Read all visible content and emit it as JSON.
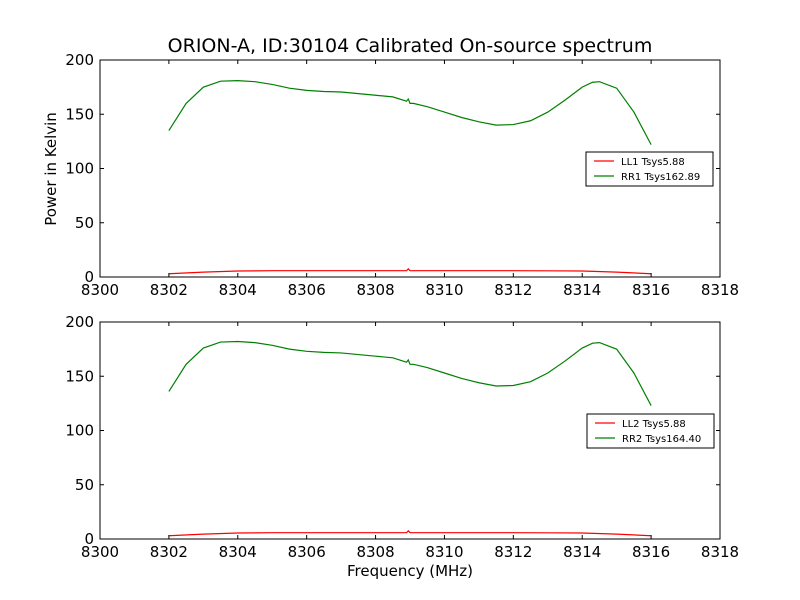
{
  "chart_data": {
    "type": "line",
    "title": "ORION-A, ID:30104 Calibrated On-source spectrum",
    "ylabel": "Power in Kelvin",
    "xlabel": "Frequency (MHz)",
    "grid": false,
    "legend_position": "right",
    "panels": [
      {
        "xlim": [
          8300,
          8318
        ],
        "ylim": [
          0,
          200
        ],
        "xticks": [
          8300,
          8302,
          8304,
          8306,
          8308,
          8310,
          8312,
          8314,
          8316,
          8318
        ],
        "yticks": [
          0,
          50,
          100,
          150,
          200
        ],
        "series": [
          {
            "name": "LL1 Tsys5.88",
            "color": "#ff0000",
            "x": [
              8302,
              8303,
              8304,
              8305,
              8306,
              8307,
              8308,
              8308.9,
              8308.95,
              8309.0,
              8309.1,
              8310,
              8311,
              8312,
              8313,
              8314,
              8315,
              8316
            ],
            "y": [
              3,
              4.5,
              5.5,
              5.8,
              5.8,
              5.8,
              5.8,
              5.8,
              7.5,
              5.8,
              5.8,
              5.8,
              5.8,
              5.8,
              5.7,
              5.5,
              4.5,
              3
            ]
          },
          {
            "name": "RR1 Tsys162.89",
            "color": "#008000",
            "x": [
              8302,
              8302.5,
              8303,
              8303.5,
              8304,
              8304.5,
              8305,
              8305.5,
              8306,
              8306.5,
              8307,
              8307.5,
              8308,
              8308.5,
              8308.9,
              8308.95,
              8309.0,
              8309.1,
              8309.5,
              8310,
              8310.5,
              8311,
              8311.5,
              8312,
              8312.5,
              8313,
              8313.5,
              8314,
              8314.3,
              8314.5,
              8315,
              8315.5,
              8316
            ],
            "y": [
              135,
              160,
              175,
              180.5,
              181,
              180,
              177.5,
              174,
              172,
              171,
              170.5,
              169,
              167.5,
              166,
              162,
              164,
              160,
              160,
              157,
              152,
              147,
              143,
              140,
              140.5,
              144,
              152,
              163,
              175,
              179.5,
              180,
              174,
              152,
              122
            ]
          }
        ]
      },
      {
        "xlim": [
          8300,
          8318
        ],
        "ylim": [
          0,
          200
        ],
        "xticks": [
          8300,
          8302,
          8304,
          8306,
          8308,
          8310,
          8312,
          8314,
          8316,
          8318
        ],
        "yticks": [
          0,
          50,
          100,
          150,
          200
        ],
        "series": [
          {
            "name": "LL2 Tsys5.88",
            "color": "#ff0000",
            "x": [
              8302,
              8303,
              8304,
              8305,
              8306,
              8307,
              8308,
              8308.9,
              8308.95,
              8309.0,
              8309.1,
              8310,
              8311,
              8312,
              8313,
              8314,
              8315,
              8316
            ],
            "y": [
              3,
              4.5,
              5.5,
              5.8,
              5.8,
              5.8,
              5.8,
              5.8,
              7.5,
              5.8,
              5.8,
              5.8,
              5.8,
              5.8,
              5.7,
              5.5,
              4.5,
              3
            ]
          },
          {
            "name": "RR2 Tsys164.40",
            "color": "#008000",
            "x": [
              8302,
              8302.5,
              8303,
              8303.5,
              8304,
              8304.5,
              8305,
              8305.5,
              8306,
              8306.5,
              8307,
              8307.5,
              8308,
              8308.5,
              8308.9,
              8308.95,
              8309.0,
              8309.1,
              8309.5,
              8310,
              8310.5,
              8311,
              8311.5,
              8312,
              8312.5,
              8313,
              8313.5,
              8314,
              8314.3,
              8314.5,
              8315,
              8315.5,
              8316
            ],
            "y": [
              136,
              161,
              176,
              181.5,
              182,
              181,
              178.5,
              175,
              173,
              172,
              171.5,
              170,
              168.5,
              167,
              163,
              165,
              161,
              161,
              158,
              153,
              148,
              144,
              141,
              141.5,
              145,
              153,
              164,
              176,
              180.5,
              181,
              175,
              153,
              123
            ]
          }
        ]
      }
    ]
  }
}
